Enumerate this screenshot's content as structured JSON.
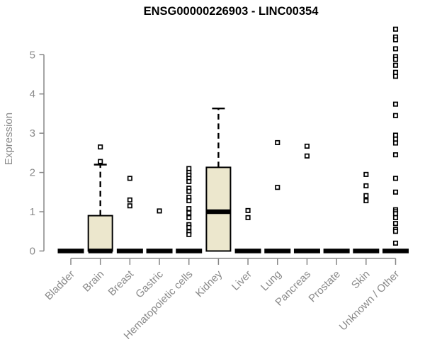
{
  "chart_data": {
    "type": "boxplot",
    "title": "ENSG00000226903 - LINC00354",
    "ylabel": "Expression",
    "xlabel": "",
    "ylim": [
      0,
      5.8
    ],
    "yticks": [
      0,
      1,
      2,
      3,
      4,
      5
    ],
    "grid": false,
    "legend": "none",
    "colors": {
      "box_fill": "#ece7cd",
      "box_stroke": "#000000",
      "median": "#000000",
      "whisker": "#000000",
      "outlier_fill": "#ffffff",
      "outlier_stroke": "#000000",
      "axis": "#878787",
      "tick_text": "#8a8a8a",
      "title_text": "#000000",
      "background": "#ffffff"
    },
    "categories": [
      "Bladder",
      "Brain",
      "Breast",
      "Gastric",
      "Hematopoietic cells",
      "Kidney",
      "Liver",
      "Lung",
      "Pancreas",
      "Prostate",
      "Skin",
      "Unknown / Other"
    ],
    "boxes": [
      {
        "category": "Bladder",
        "q1": 0,
        "median": 0,
        "q3": 0,
        "whisker_low": 0,
        "whisker_high": 0,
        "outliers": []
      },
      {
        "category": "Brain",
        "q1": 0,
        "median": 0,
        "q3": 0.9,
        "whisker_low": 0,
        "whisker_high": 2.2,
        "outliers": [
          2.28,
          2.65
        ]
      },
      {
        "category": "Breast",
        "q1": 0,
        "median": 0,
        "q3": 0,
        "whisker_low": 0,
        "whisker_high": 0,
        "outliers": [
          1.85,
          1.3,
          1.15
        ]
      },
      {
        "category": "Gastric",
        "q1": 0,
        "median": 0,
        "q3": 0,
        "whisker_low": 0,
        "whisker_high": 0,
        "outliers": [
          1.02
        ]
      },
      {
        "category": "Hematopoietic cells",
        "q1": 0,
        "median": 0,
        "q3": 0,
        "whisker_low": 0,
        "whisker_high": 0,
        "outliers": [
          2.1,
          2.0,
          1.93,
          1.85,
          1.77,
          1.6,
          1.52,
          1.37,
          1.28,
          1.08,
          0.97,
          0.85,
          0.67,
          0.6,
          0.49,
          0.42
        ]
      },
      {
        "category": "Kidney",
        "q1": 0,
        "median": 1.0,
        "q3": 2.13,
        "whisker_low": 0,
        "whisker_high": 3.63,
        "outliers": []
      },
      {
        "category": "Liver",
        "q1": 0,
        "median": 0,
        "q3": 0,
        "whisker_low": 0,
        "whisker_high": 0,
        "outliers": [
          1.03,
          0.85
        ]
      },
      {
        "category": "Lung",
        "q1": 0,
        "median": 0,
        "q3": 0,
        "whisker_low": 0,
        "whisker_high": 0,
        "outliers": [
          2.76,
          1.62
        ]
      },
      {
        "category": "Pancreas",
        "q1": 0,
        "median": 0,
        "q3": 0,
        "whisker_low": 0,
        "whisker_high": 0,
        "outliers": [
          2.67,
          2.42
        ]
      },
      {
        "category": "Prostate",
        "q1": 0,
        "median": 0,
        "q3": 0,
        "whisker_low": 0,
        "whisker_high": 0,
        "outliers": []
      },
      {
        "category": "Skin",
        "q1": 0,
        "median": 0,
        "q3": 0,
        "whisker_low": 0,
        "whisker_high": 0,
        "outliers": [
          1.95,
          1.66,
          1.41,
          1.28
        ]
      },
      {
        "category": "Unknown / Other",
        "q1": 0,
        "median": 0,
        "q3": 0,
        "whisker_low": 0,
        "whisker_high": 0,
        "outliers": [
          5.65,
          5.45,
          5.38,
          5.15,
          4.95,
          4.88,
          4.73,
          4.55,
          4.45,
          3.74,
          3.45,
          2.95,
          2.85,
          2.75,
          2.45,
          1.85,
          1.5,
          1.05,
          1.0,
          0.95,
          0.85,
          0.7,
          0.55,
          0.5,
          0.2
        ]
      }
    ]
  }
}
